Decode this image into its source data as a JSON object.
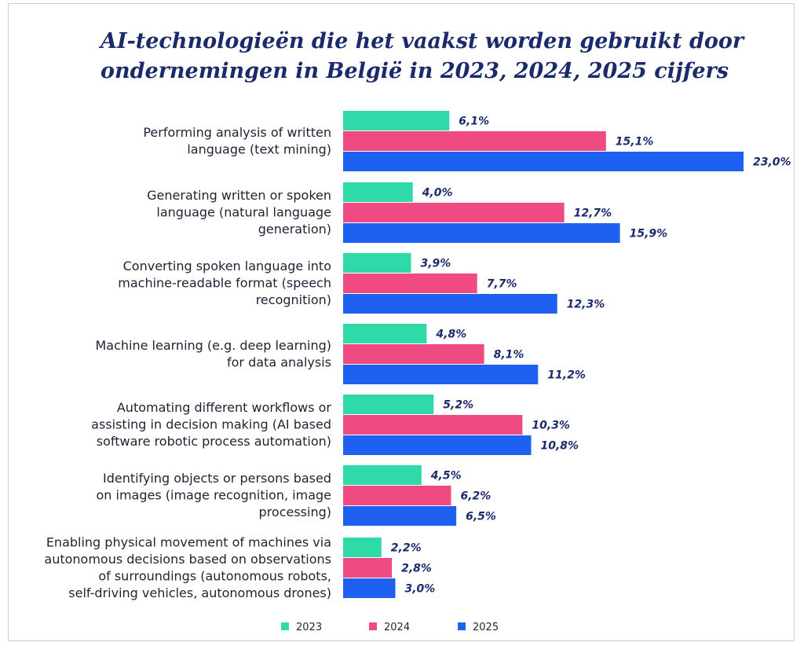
{
  "chart_data": {
    "type": "bar",
    "orientation": "horizontal",
    "title": "AI-technologieën die het vaakst worden gebruikt door\nondernemingen in België in 2023, 2024, 2025 cijfers",
    "categories": [
      [
        "Performing analysis of written",
        "language (text mining)"
      ],
      [
        "Generating written or spoken",
        "language (natural language",
        "generation)"
      ],
      [
        "Converting spoken language into",
        "machine-readable format (speech",
        "recognition)"
      ],
      [
        "Machine learning (e.g. deep learning)",
        "for data analysis"
      ],
      [
        "Automating different workflows or",
        "assisting in decision making (AI based",
        "software robotic process automation)"
      ],
      [
        "Identifying objects or persons based",
        "on images (image recognition, image",
        "processing)"
      ],
      [
        "Enabling physical movement of machines via",
        "autonomous decisions based on observations",
        "of surroundings (autonomous robots,",
        "self-driving vehicles, autonomous drones)"
      ]
    ],
    "series": [
      {
        "name": "2023",
        "color": "#2fd9a8",
        "values": [
          6.1,
          4.0,
          3.9,
          4.8,
          5.2,
          4.5,
          2.2
        ],
        "labels": [
          "6,1%",
          "4,0%",
          "3,9%",
          "4,8%",
          "5,2%",
          "4,5%",
          "2,2%"
        ]
      },
      {
        "name": "2024",
        "color": "#ef4b82",
        "values": [
          15.1,
          12.7,
          7.7,
          8.1,
          10.3,
          6.2,
          2.8
        ],
        "labels": [
          "15,1%",
          "12,7%",
          "7,7%",
          "8,1%",
          "10,3%",
          "6,2%",
          "2,8%"
        ]
      },
      {
        "name": "2025",
        "color": "#1e60f0",
        "values": [
          23.0,
          15.9,
          12.3,
          11.2,
          10.8,
          6.5,
          3.0
        ],
        "labels": [
          "23,0%",
          "15,9%",
          "12,3%",
          "11,2%",
          "10,8%",
          "6,5%",
          "3,0%"
        ]
      }
    ],
    "xlim": [
      0,
      23
    ],
    "unit": "%",
    "grid": false,
    "legend": "bottom"
  }
}
